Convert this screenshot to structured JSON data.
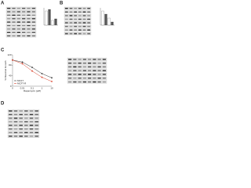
{
  "panels": [
    {
      "label": "A"
    },
    {
      "label": "B"
    },
    {
      "label": "C"
    },
    {
      "label": "D"
    }
  ],
  "chart_data": {
    "type": "line",
    "x_label": "Rapamycin (μM)",
    "y_label": "% Maximal Growth",
    "categories": [
      "0",
      "0.01",
      "0.1",
      "1",
      "10"
    ],
    "series": [
      {
        "name": "MCF7",
        "color": "#333333",
        "values": [
          100,
          92,
          72,
          48,
          32
        ]
      },
      {
        "name": "MCF7-R",
        "color": "#d9412b",
        "values": [
          100,
          86,
          58,
          34,
          18
        ]
      }
    ],
    "ylim": [
      0,
      120
    ],
    "yticks": [
      0,
      40,
      80,
      120
    ]
  }
}
